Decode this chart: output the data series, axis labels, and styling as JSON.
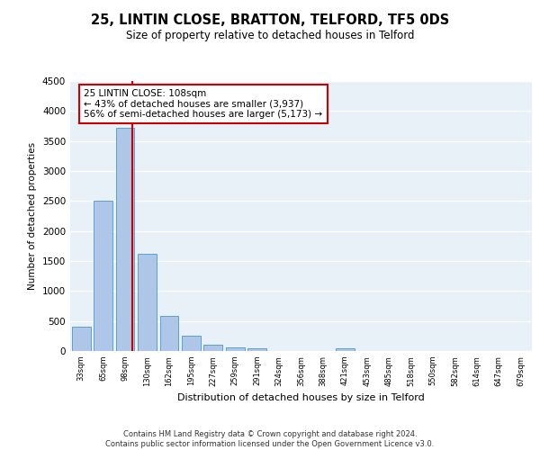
{
  "title": "25, LINTIN CLOSE, BRATTON, TELFORD, TF5 0DS",
  "subtitle": "Size of property relative to detached houses in Telford",
  "xlabel": "Distribution of detached houses by size in Telford",
  "ylabel": "Number of detached properties",
  "categories": [
    "33sqm",
    "65sqm",
    "98sqm",
    "130sqm",
    "162sqm",
    "195sqm",
    "227sqm",
    "259sqm",
    "291sqm",
    "324sqm",
    "356sqm",
    "388sqm",
    "421sqm",
    "453sqm",
    "485sqm",
    "518sqm",
    "550sqm",
    "582sqm",
    "614sqm",
    "647sqm",
    "679sqm"
  ],
  "values": [
    400,
    2500,
    3720,
    1620,
    590,
    250,
    110,
    60,
    50,
    0,
    0,
    0,
    50,
    0,
    0,
    0,
    0,
    0,
    0,
    0,
    0
  ],
  "bar_color": "#aec6e8",
  "bar_edge_color": "#5a9fd4",
  "bg_color": "#e8f0f8",
  "grid_color": "#ffffff",
  "annotation_text": "25 LINTIN CLOSE: 108sqm\n← 43% of detached houses are smaller (3,937)\n56% of semi-detached houses are larger (5,173) →",
  "annotation_box_color": "#ffffff",
  "annotation_box_edge": "#cc0000",
  "ylim": [
    0,
    4500
  ],
  "yticks": [
    0,
    500,
    1000,
    1500,
    2000,
    2500,
    3000,
    3500,
    4000,
    4500
  ],
  "footer_line1": "Contains HM Land Registry data © Crown copyright and database right 2024.",
  "footer_line2": "Contains public sector information licensed under the Open Government Licence v3.0."
}
